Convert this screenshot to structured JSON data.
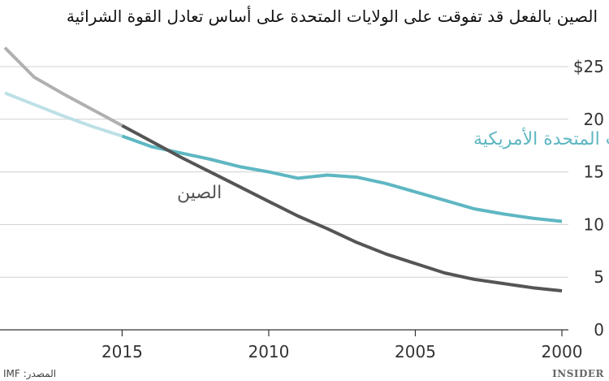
{
  "chart_data": {
    "type": "line",
    "title": "الصين بالفعل قد تفوقت على الولايات المتحدة على أساس تعادل القوة الشرائية",
    "x_direction": "reversed",
    "xlim": [
      2000,
      2019
    ],
    "ylim": [
      0,
      25
    ],
    "x_ticks": [
      2015,
      2010,
      2005,
      2000
    ],
    "y_ticks": [
      {
        "value": 25,
        "label": "$25"
      },
      {
        "value": 20,
        "label": "20"
      },
      {
        "value": 15,
        "label": "15"
      },
      {
        "value": 10,
        "label": "10"
      },
      {
        "value": 5,
        "label": "5"
      },
      {
        "value": 0,
        "label": "0"
      }
    ],
    "grid": "horizontal",
    "series": [
      {
        "name": "الولايات المتحدة الأمريكية",
        "color": "#5eb7c2",
        "projection_color": "#bde0e6",
        "projection_from": 2015,
        "x": [
          2000,
          2001,
          2002,
          2003,
          2004,
          2005,
          2006,
          2007,
          2008,
          2009,
          2010,
          2011,
          2012,
          2013,
          2014,
          2015,
          2016,
          2017,
          2018,
          2019
        ],
        "values": [
          10.3,
          10.6,
          11.0,
          11.5,
          12.3,
          13.1,
          13.9,
          14.5,
          14.7,
          14.4,
          15.0,
          15.5,
          16.2,
          16.8,
          17.4,
          18.4,
          19.3,
          20.3,
          21.4,
          22.5
        ]
      },
      {
        "name": "الصين",
        "color": "#555555",
        "projection_color": "#b0b0b0",
        "projection_from": 2015,
        "x": [
          2000,
          2001,
          2002,
          2003,
          2004,
          2005,
          2006,
          2007,
          2008,
          2009,
          2010,
          2011,
          2012,
          2013,
          2014,
          2015,
          2016,
          2017,
          2018,
          2019
        ],
        "values": [
          3.7,
          4.0,
          4.4,
          4.8,
          5.4,
          6.3,
          7.2,
          8.3,
          9.6,
          10.8,
          12.2,
          13.6,
          15.0,
          16.4,
          17.9,
          19.4,
          20.9,
          22.4,
          24.0,
          26.8
        ]
      }
    ]
  },
  "source": "المصدر: IMF",
  "brand": "INSIDER"
}
